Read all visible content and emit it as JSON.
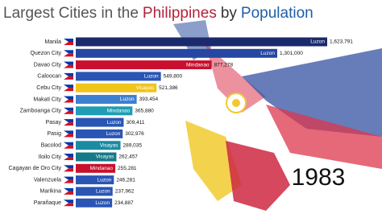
{
  "chart_data": {
    "type": "bar",
    "orientation": "horizontal",
    "title_parts": [
      "Largest Cities in the",
      "Philippines",
      "by",
      "Population"
    ],
    "title_colors": [
      "#555555",
      "#b5233a",
      "#333333",
      "#1d5fa8"
    ],
    "year": "1983",
    "categories": [
      "Manila",
      "Quezon City",
      "Davao City",
      "Caloocan",
      "Cebu City",
      "Makati City",
      "Zamboanga City",
      "Pasay",
      "Pasig",
      "Bacolod",
      "Iloilo City",
      "Cagayan de Oro City",
      "Valenzuela",
      "Marikina",
      "Parañaque"
    ],
    "values": [
      1623791,
      1301000,
      877278,
      549800,
      521386,
      393454,
      365880,
      309411,
      302976,
      289035,
      262457,
      255281,
      246281,
      237962,
      234887
    ],
    "value_labels": [
      "1,623,791",
      "1,301,000",
      "877,278",
      "549,800",
      "521,386",
      "393,454",
      "365,880",
      "309,411",
      "302,976",
      "289,035",
      "262,457",
      "255,281",
      "246,281",
      "237,962",
      "234,887"
    ],
    "groups": [
      "Luzon",
      "Luzon",
      "Mindanao",
      "Luzon",
      "Visayas",
      "Luzon",
      "Mindanao",
      "Luzon",
      "Luzon",
      "Visayas",
      "Visayas",
      "Mindanao",
      "Luzon",
      "Luzon",
      "Luzon"
    ],
    "colors": [
      "#1b2a6b",
      "#2646a2",
      "#c8102e",
      "#2a55b5",
      "#f0c419",
      "#3d7fd0",
      "#1f9db3",
      "#2a55b5",
      "#2a55b5",
      "#1b8ba3",
      "#15798a",
      "#c8102e",
      "#2a55b5",
      "#2a55b5",
      "#2a55b5"
    ]
  }
}
